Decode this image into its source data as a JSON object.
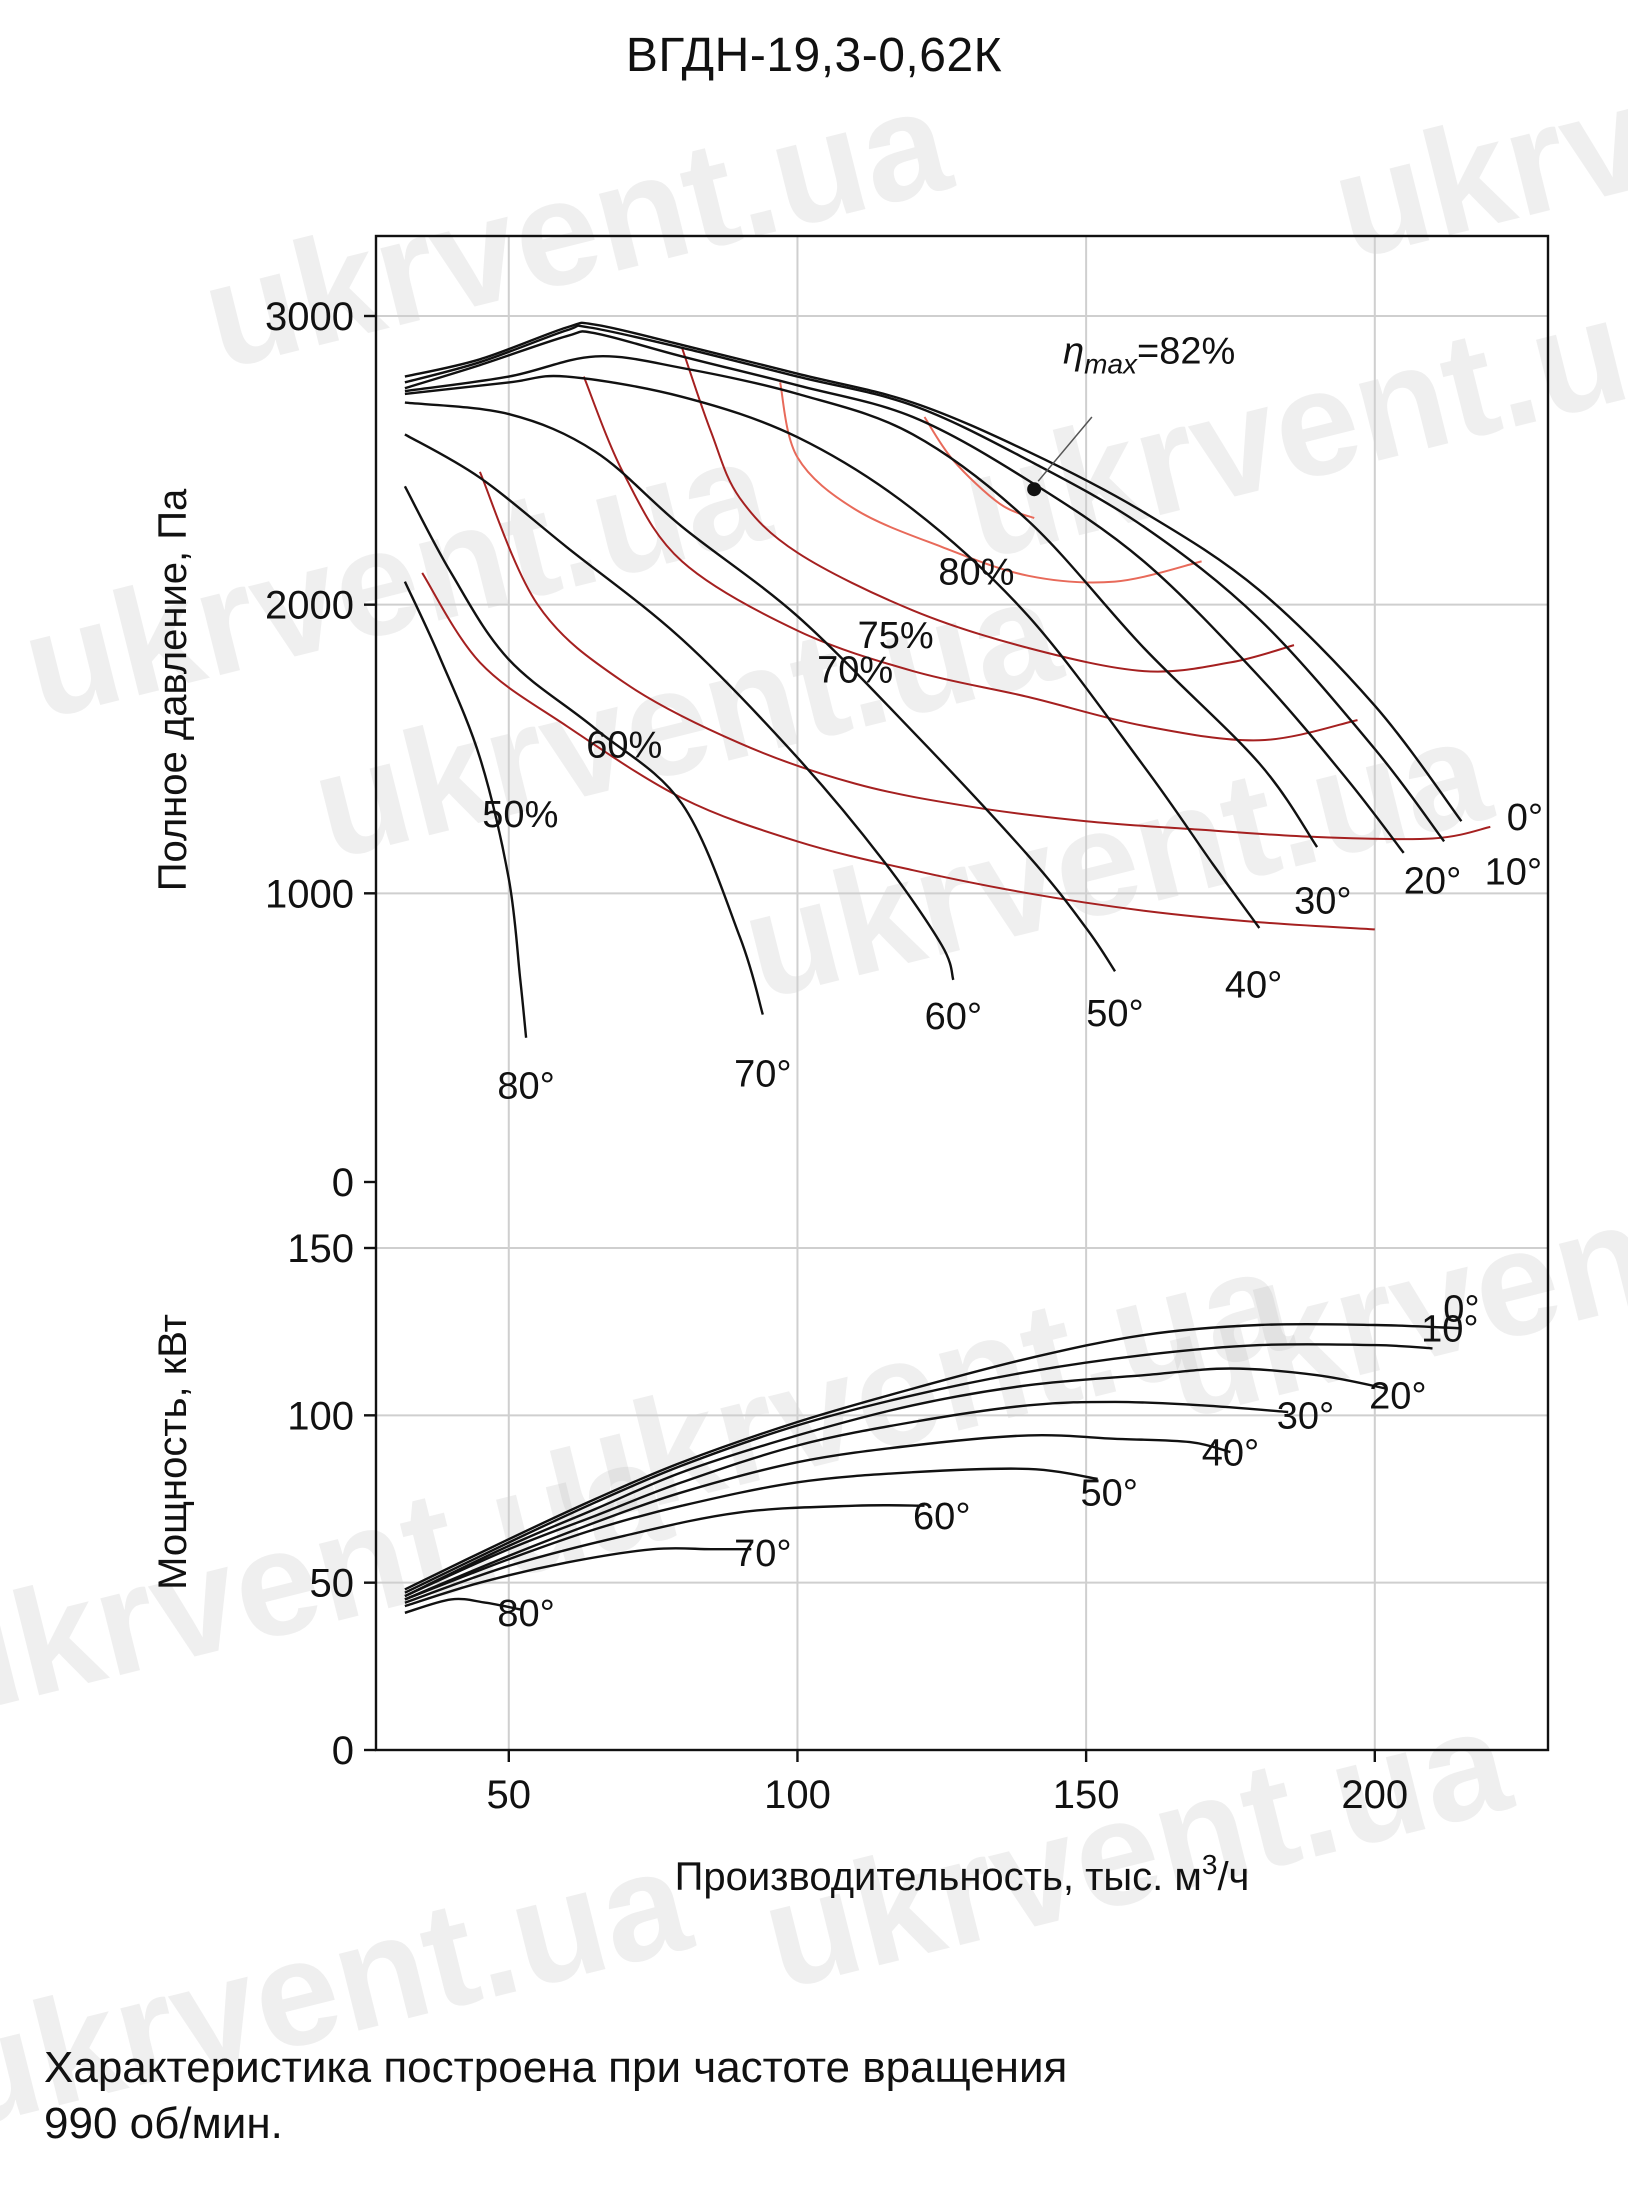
{
  "title": "ВГДН-19,3-0,62К",
  "note_line1": "Характеристика построена при частоте вращения",
  "note_line2": "990 об/мин.",
  "watermark": "ukrvent.ua",
  "colors": {
    "curve": "#111111",
    "eff_dark": "#a52020",
    "eff_light": "#e86a5a",
    "grid": "#cfcfcf"
  },
  "chart_data": [
    {
      "type": "line",
      "title": "ВГДН-19,3-0,62К",
      "ylabel": "Полное давление, Па",
      "xlabel": "Производительность, тыс. м³/ч",
      "xlabel_main": "Производительность, тыс. м",
      "xlabel_sup": "3",
      "xlabel_tail": "/ч",
      "xlim": [
        27,
        230
      ],
      "ylim": [
        0,
        3300
      ],
      "xticks": [
        50,
        100,
        150,
        200
      ],
      "yticks": [
        0,
        1000,
        2000,
        3000
      ],
      "xtick_labels": [
        "50",
        "100",
        "150",
        "200"
      ],
      "ytick_labels": [
        "0",
        "1000",
        "2000",
        "3000"
      ],
      "grid": true,
      "eta_max": {
        "label_main": "η",
        "label_sub": "max",
        "label_rest": "=82%",
        "point": [
          141,
          2400
        ]
      },
      "series": [
        {
          "name": "0°",
          "label": "0°",
          "label_at": [
            226,
            1220
          ],
          "points": [
            [
              32,
              2790
            ],
            [
              45,
              2850
            ],
            [
              60,
              2960
            ],
            [
              65,
              2970
            ],
            [
              80,
              2900
            ],
            [
              100,
              2800
            ],
            [
              120,
              2700
            ],
            [
              140,
              2530
            ],
            [
              160,
              2320
            ],
            [
              180,
              2050
            ],
            [
              200,
              1650
            ],
            [
              215,
              1250
            ]
          ]
        },
        {
          "name": "10°",
          "label": "10°",
          "label_at": [
            224,
            1030
          ],
          "points": [
            [
              32,
              2770
            ],
            [
              45,
              2840
            ],
            [
              60,
              2950
            ],
            [
              64,
              2960
            ],
            [
              80,
              2890
            ],
            [
              100,
              2790
            ],
            [
              120,
              2690
            ],
            [
              140,
              2500
            ],
            [
              160,
              2270
            ],
            [
              180,
              1950
            ],
            [
              200,
              1500
            ],
            [
              212,
              1180
            ]
          ]
        },
        {
          "name": "20°",
          "label": "20°",
          "label_at": [
            210,
            1000
          ],
          "points": [
            [
              32,
              2750
            ],
            [
              45,
              2830
            ],
            [
              60,
              2930
            ],
            [
              65,
              2940
            ],
            [
              80,
              2860
            ],
            [
              100,
              2760
            ],
            [
              120,
              2650
            ],
            [
              140,
              2430
            ],
            [
              160,
              2150
            ],
            [
              180,
              1750
            ],
            [
              195,
              1400
            ],
            [
              205,
              1140
            ]
          ]
        },
        {
          "name": "30°",
          "label": "30°",
          "label_at": [
            191,
            930
          ],
          "points": [
            [
              32,
              2740
            ],
            [
              50,
              2790
            ],
            [
              65,
              2860
            ],
            [
              80,
              2820
            ],
            [
              100,
              2730
            ],
            [
              120,
              2590
            ],
            [
              140,
              2290
            ],
            [
              160,
              1850
            ],
            [
              180,
              1450
            ],
            [
              190,
              1160
            ]
          ]
        },
        {
          "name": "40°",
          "label": "40°",
          "label_at": [
            179,
            640
          ],
          "points": [
            [
              32,
              2730
            ],
            [
              50,
              2770
            ],
            [
              60,
              2790
            ],
            [
              80,
              2720
            ],
            [
              100,
              2580
            ],
            [
              120,
              2330
            ],
            [
              140,
              1960
            ],
            [
              160,
              1440
            ],
            [
              172,
              1100
            ],
            [
              180,
              880
            ]
          ]
        },
        {
          "name": "50°",
          "label": "50°",
          "label_at": [
            155,
            540
          ],
          "points": [
            [
              32,
              2700
            ],
            [
              50,
              2660
            ],
            [
              65,
              2530
            ],
            [
              80,
              2270
            ],
            [
              100,
              1960
            ],
            [
              120,
              1560
            ],
            [
              140,
              1130
            ],
            [
              150,
              880
            ],
            [
              155,
              730
            ]
          ]
        },
        {
          "name": "60°",
          "label": "60°",
          "label_at": [
            127,
            530
          ],
          "points": [
            [
              32,
              2590
            ],
            [
              45,
              2440
            ],
            [
              60,
              2200
            ],
            [
              80,
              1880
            ],
            [
              100,
              1470
            ],
            [
              115,
              1110
            ],
            [
              125,
              820
            ],
            [
              127,
              700
            ]
          ]
        },
        {
          "name": "70°",
          "label": "70°",
          "label_at": [
            94,
            330
          ],
          "points": [
            [
              32,
              2410
            ],
            [
              40,
              2110
            ],
            [
              50,
              1810
            ],
            [
              65,
              1570
            ],
            [
              80,
              1310
            ],
            [
              90,
              850
            ],
            [
              94,
              580
            ]
          ]
        },
        {
          "name": "80°",
          "label": "80°",
          "label_at": [
            53,
            290
          ],
          "points": [
            [
              32,
              2080
            ],
            [
              38,
              1820
            ],
            [
              45,
              1470
            ],
            [
              50,
              1050
            ],
            [
              52,
              700
            ],
            [
              53,
              500
            ]
          ]
        }
      ],
      "efficiency_series": [
        {
          "name": "50%",
          "label": "50%",
          "label_at": [
            52,
            1230
          ],
          "points": [
            [
              35,
              2110
            ],
            [
              45,
              1800
            ],
            [
              60,
              1580
            ],
            [
              80,
              1330
            ],
            [
              100,
              1180
            ],
            [
              120,
              1080
            ],
            [
              140,
              1000
            ],
            [
              160,
              940
            ],
            [
              180,
              900
            ],
            [
              200,
              875
            ]
          ]
        },
        {
          "name": "60%",
          "label": "60%",
          "label_at": [
            70,
            1470
          ],
          "points": [
            [
              45,
              2460
            ],
            [
              55,
              2000
            ],
            [
              70,
              1730
            ],
            [
              90,
              1520
            ],
            [
              110,
              1380
            ],
            [
              130,
              1300
            ],
            [
              150,
              1250
            ],
            [
              170,
              1220
            ],
            [
              190,
              1195
            ],
            [
              210,
              1190
            ],
            [
              220,
              1230
            ]
          ]
        },
        {
          "name": "70%",
          "label": "70%",
          "label_at": [
            110,
            1730
          ],
          "points": [
            [
              63,
              2790
            ],
            [
              70,
              2450
            ],
            [
              80,
              2150
            ],
            [
              100,
              1910
            ],
            [
              120,
              1770
            ],
            [
              140,
              1680
            ],
            [
              160,
              1580
            ],
            [
              180,
              1530
            ],
            [
              197,
              1600
            ]
          ]
        },
        {
          "name": "75%",
          "label": "75%",
          "label_at": [
            117,
            1850
          ],
          "points": [
            [
              80,
              2890
            ],
            [
              85,
              2600
            ],
            [
              90,
              2370
            ],
            [
              100,
              2180
            ],
            [
              120,
              1980
            ],
            [
              140,
              1850
            ],
            [
              160,
              1770
            ],
            [
              175,
              1800
            ],
            [
              186,
              1860
            ]
          ]
        },
        {
          "name": "80%",
          "label": "80%",
          "label_at": [
            131,
            2070
          ],
          "points": [
            [
              97,
              2770
            ],
            [
              100,
              2510
            ],
            [
              110,
              2330
            ],
            [
              125,
              2200
            ],
            [
              140,
              2100
            ],
            [
              155,
              2080
            ],
            [
              170,
              2150
            ]
          ]
        },
        {
          "name": "82%",
          "label": "",
          "label_at": null,
          "points": [
            [
              122,
              2650
            ],
            [
              127,
              2500
            ],
            [
              135,
              2350
            ],
            [
              141,
              2300
            ]
          ]
        }
      ]
    },
    {
      "type": "line",
      "ylabel": "Мощность, кВт",
      "xlim": [
        27,
        230
      ],
      "ylim": [
        0,
        150
      ],
      "xticks": [
        50,
        100,
        150,
        200
      ],
      "yticks": [
        0,
        50,
        100,
        150
      ],
      "ytick_labels": [
        "0",
        "50",
        "100",
        "150"
      ],
      "grid": true,
      "series": [
        {
          "name": "0°",
          "label": "0°",
          "label_at": [
            215,
            128
          ],
          "points": [
            [
              32,
              48
            ],
            [
              50,
              63
            ],
            [
              65,
              75
            ],
            [
              80,
              86
            ],
            [
              100,
              98
            ],
            [
              120,
              108
            ],
            [
              140,
              117
            ],
            [
              160,
              124
            ],
            [
              180,
              127
            ],
            [
              200,
              127
            ],
            [
              215,
              126
            ]
          ]
        },
        {
          "name": "10°",
          "label": "10°",
          "label_at": [
            213,
            122
          ],
          "points": [
            [
              32,
              47
            ],
            [
              50,
              62
            ],
            [
              65,
              74
            ],
            [
              80,
              85
            ],
            [
              100,
              97
            ],
            [
              120,
              106
            ],
            [
              140,
              113
            ],
            [
              160,
              118
            ],
            [
              180,
              121
            ],
            [
              200,
              121
            ],
            [
              210,
              120
            ]
          ]
        },
        {
          "name": "20°",
          "label": "20°",
          "label_at": [
            204,
            102
          ],
          "points": [
            [
              32,
              46
            ],
            [
              50,
              61
            ],
            [
              65,
              72
            ],
            [
              80,
              83
            ],
            [
              100,
              94
            ],
            [
              120,
              103
            ],
            [
              140,
              109
            ],
            [
              160,
              112
            ],
            [
              175,
              114
            ],
            [
              190,
              112
            ],
            [
              202,
              108
            ]
          ]
        },
        {
          "name": "30°",
          "label": "30°",
          "label_at": [
            188,
            96
          ],
          "points": [
            [
              32,
              46
            ],
            [
              50,
              60
            ],
            [
              65,
              70
            ],
            [
              80,
              80
            ],
            [
              100,
              91
            ],
            [
              120,
              98
            ],
            [
              140,
              103
            ],
            [
              155,
              104
            ],
            [
              170,
              103
            ],
            [
              185,
              101
            ]
          ]
        },
        {
          "name": "40°",
          "label": "40°",
          "label_at": [
            175,
            85
          ],
          "points": [
            [
              32,
              45
            ],
            [
              50,
              58
            ],
            [
              65,
              68
            ],
            [
              80,
              77
            ],
            [
              100,
              86
            ],
            [
              120,
              91
            ],
            [
              140,
              94
            ],
            [
              155,
              93
            ],
            [
              168,
              92
            ],
            [
              175,
              89
            ]
          ]
        },
        {
          "name": "50°",
          "label": "50°",
          "label_at": [
            154,
            73
          ],
          "points": [
            [
              32,
              45
            ],
            [
              50,
              57
            ],
            [
              65,
              66
            ],
            [
              80,
              73
            ],
            [
              100,
              80
            ],
            [
              120,
              83
            ],
            [
              140,
              84
            ],
            [
              152,
              81
            ]
          ]
        },
        {
          "name": "60°",
          "label": "60°",
          "label_at": [
            125,
            66
          ],
          "points": [
            [
              32,
              44
            ],
            [
              50,
              55
            ],
            [
              70,
              64
            ],
            [
              90,
              71
            ],
            [
              110,
              73
            ],
            [
              122,
              73
            ]
          ]
        },
        {
          "name": "70°",
          "label": "70°",
          "label_at": [
            94,
            55
          ],
          "points": [
            [
              32,
              43
            ],
            [
              45,
              50
            ],
            [
              60,
              56
            ],
            [
              75,
              60
            ],
            [
              85,
              60
            ],
            [
              92,
              60
            ]
          ]
        },
        {
          "name": "80°",
          "label": "80°",
          "label_at": [
            53,
            37
          ],
          "points": [
            [
              32,
              41
            ],
            [
              40,
              45
            ],
            [
              46,
              44
            ],
            [
              52,
              42
            ]
          ]
        }
      ]
    }
  ]
}
